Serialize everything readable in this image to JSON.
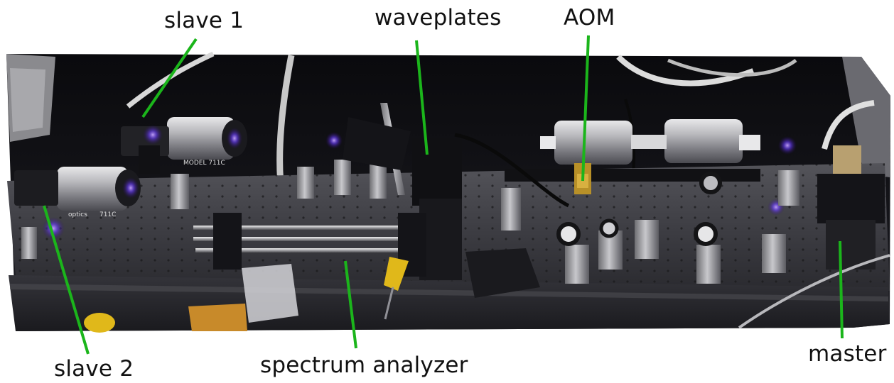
{
  "figure": {
    "labels": {
      "slave1": "slave 1",
      "waveplates": "waveplates",
      "aom": "AOM",
      "slave2": "slave 2",
      "spectrum_analyzer": "spectrum analyzer",
      "master": "master"
    },
    "pointer_color": "#1bb51b",
    "photo_text": {
      "model_a": "MODEL 711C",
      "model_b": "711C",
      "brand": "optics"
    }
  }
}
